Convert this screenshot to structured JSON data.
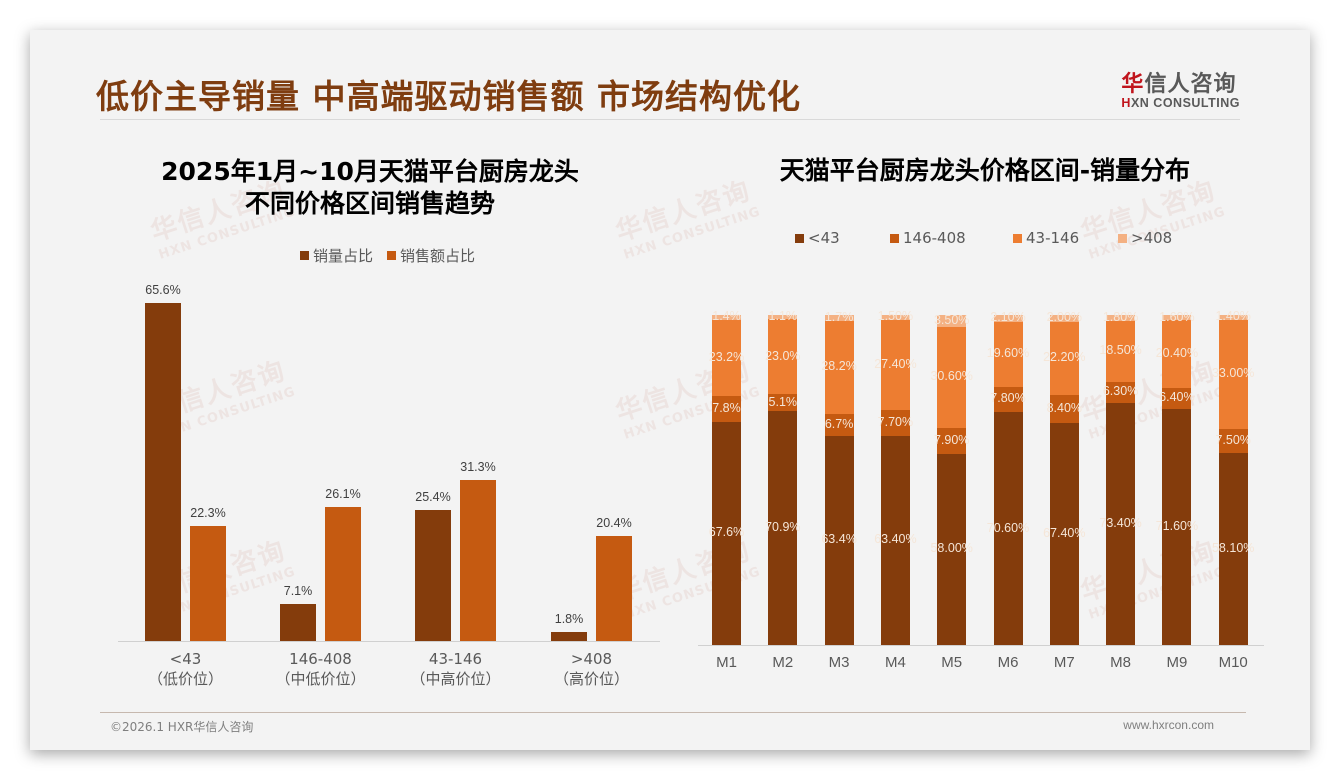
{
  "header": {
    "title": "低价主导销量 中高端驱动销售额 市场结构优化",
    "logo_cn_red": "华",
    "logo_cn_rest": "信人咨询",
    "logo_en_red": "H",
    "logo_en_rest": "XN CONSULTING"
  },
  "watermark": {
    "cn": "华信人咨询",
    "en": "HXN CONSULTING"
  },
  "colors": {
    "title": "#7f3d10",
    "dark_brown": "#843c0c",
    "orange_dark": "#c55a11",
    "orange_mid": "#ed7d31",
    "orange_light": "#f4b183"
  },
  "chart_data": [
    {
      "type": "bar",
      "title_line1": "2025年1月~10月天猫平台厨房龙头",
      "title_line2": "不同价格区间销售趋势",
      "categories": [
        "<43",
        "146-408",
        "43-146",
        ">408"
      ],
      "category_sublabels": [
        "（低价位）",
        "（中低价位）",
        "（中高价位）",
        "（高价位）"
      ],
      "series": [
        {
          "name": "销量占比",
          "values": [
            65.6,
            7.1,
            25.4,
            1.8
          ],
          "labels": [
            "65.6%",
            "7.1%",
            "25.4%",
            "1.8%"
          ],
          "color": "#843c0c"
        },
        {
          "name": "销售额占比",
          "values": [
            22.3,
            26.1,
            31.3,
            20.4
          ],
          "labels": [
            "22.3%",
            "26.1%",
            "31.3%",
            "20.4%"
          ],
          "color": "#c55a11"
        }
      ],
      "xlabel": "",
      "ylabel": "",
      "ylim": [
        0,
        70
      ],
      "grid": false,
      "legend_position": "top"
    },
    {
      "type": "bar",
      "stacked": true,
      "title": "天猫平台厨房龙头价格区间-销量分布",
      "categories": [
        "M1",
        "M2",
        "M3",
        "M4",
        "M5",
        "M6",
        "M7",
        "M8",
        "M9",
        "M10"
      ],
      "series": [
        {
          "name": "<43",
          "color": "#843c0c",
          "values": [
            67.6,
            70.9,
            63.4,
            63.4,
            58.0,
            70.6,
            67.4,
            73.4,
            71.6,
            58.1
          ],
          "labels": [
            "67.6%",
            "70.9%",
            "63.4%",
            "63.40%",
            "58.00%",
            "70.60%",
            "67.40%",
            "73.40%",
            "71.60%",
            "58.10%"
          ]
        },
        {
          "name": "146-408",
          "color": "#c55a11",
          "values": [
            7.8,
            5.1,
            6.7,
            7.7,
            7.9,
            7.8,
            8.4,
            6.3,
            6.4,
            7.5
          ],
          "labels": [
            "7.8%",
            "5.1%",
            "6.7%",
            "7.70%",
            "7.90%",
            "7.80%",
            "8.40%",
            "6.30%",
            "6.40%",
            "7.50%"
          ]
        },
        {
          "name": "43-146",
          "color": "#ed7d31",
          "values": [
            23.2,
            23.0,
            28.2,
            27.4,
            30.6,
            19.6,
            22.2,
            18.5,
            20.4,
            33.0
          ],
          "labels": [
            "23.2%",
            "23.0%",
            "28.2%",
            "27.40%",
            "30.60%",
            "19.60%",
            "22.20%",
            "18.50%",
            "20.40%",
            "33.00%"
          ]
        },
        {
          "name": ">408",
          "color": "#f4b183",
          "values": [
            1.4,
            1.1,
            1.7,
            1.5,
            3.5,
            2.1,
            2.0,
            1.8,
            1.6,
            1.4
          ],
          "labels": [
            "1.4%",
            "1.1%",
            "1.7%",
            "1.50%",
            "3.50%",
            "2.10%",
            "2.00%",
            "1.80%",
            "1.60%",
            "1.40%"
          ]
        }
      ],
      "xlabel": "",
      "ylabel": "",
      "ylim": [
        0,
        100
      ],
      "grid": false,
      "legend_position": "top"
    }
  ],
  "footer": {
    "left": "©2026.1 HXR华信人咨询",
    "right": "www.hxrcon.com"
  }
}
